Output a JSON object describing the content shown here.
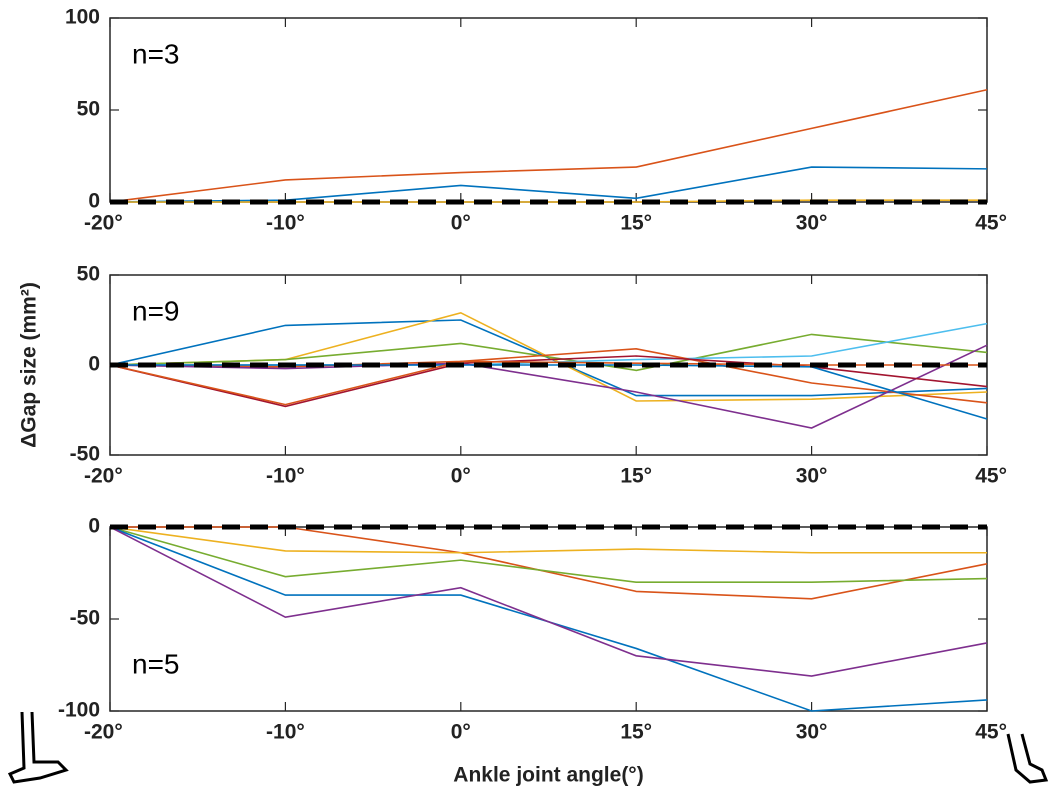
{
  "chart_data": [
    {
      "type": "line",
      "annotation": "n=3",
      "categories": [
        "-20°",
        "-10°",
        "0°",
        "15°",
        "30°",
        "45°"
      ],
      "ylim": [
        0,
        100
      ],
      "yticks": [
        0,
        50,
        100
      ],
      "reference_line": 0,
      "series": [
        {
          "color": "#D95319",
          "values": [
            0,
            12,
            16,
            19,
            40,
            61
          ]
        },
        {
          "color": "#0072BD",
          "values": [
            0,
            1,
            9,
            2,
            19,
            18
          ]
        },
        {
          "color": "#EDB120",
          "values": [
            0,
            0,
            0,
            0,
            1,
            1
          ]
        }
      ]
    },
    {
      "type": "line",
      "annotation": "n=9",
      "ylabel": "ΔGap size (mm²)",
      "categories": [
        "-20°",
        "-10°",
        "0°",
        "15°",
        "30°",
        "45°"
      ],
      "ylim": [
        -50,
        50
      ],
      "yticks": [
        -50,
        0,
        50
      ],
      "reference_line": 0,
      "series": [
        {
          "color": "#0072BD",
          "values": [
            0,
            22,
            25,
            -17,
            -17,
            -13
          ]
        },
        {
          "color": "#EDB120",
          "values": [
            0,
            3,
            29,
            -20,
            -19,
            -15
          ]
        },
        {
          "color": "#77AC30",
          "values": [
            0,
            3,
            12,
            -3,
            17,
            7
          ]
        },
        {
          "color": "#4DBEEE",
          "values": [
            0,
            0,
            0,
            3,
            5,
            23
          ]
        },
        {
          "color": "#D95319",
          "values": [
            0,
            -1,
            2,
            9,
            -10,
            -21
          ]
        },
        {
          "color": "#7E2F8E",
          "values": [
            0,
            -2,
            1,
            -15,
            -35,
            11
          ]
        },
        {
          "color": "#A2142F",
          "values": [
            0,
            -23,
            1,
            5,
            -1,
            -12
          ]
        },
        {
          "color": "#0072BD",
          "values": [
            0,
            0,
            0,
            0,
            -1,
            -30
          ]
        },
        {
          "color": "#D95319",
          "values": [
            0,
            -22,
            2,
            1,
            0,
            0
          ]
        }
      ]
    },
    {
      "type": "line",
      "annotation": "n=5",
      "xlabel": "Ankle joint angle(°)",
      "categories": [
        "-20°",
        "-10°",
        "0°",
        "15°",
        "30°",
        "45°"
      ],
      "ylim": [
        -100,
        0
      ],
      "yticks": [
        -100,
        -50,
        0
      ],
      "reference_line": 0,
      "series": [
        {
          "color": "#D95319",
          "values": [
            0,
            0,
            -14,
            -35,
            -39,
            -20
          ]
        },
        {
          "color": "#EDB120",
          "values": [
            0,
            -13,
            -14,
            -12,
            -14,
            -14
          ]
        },
        {
          "color": "#77AC30",
          "values": [
            0,
            -27,
            -18,
            -30,
            -30,
            -28
          ]
        },
        {
          "color": "#0072BD",
          "values": [
            0,
            -37,
            -37,
            -66,
            -100,
            -94
          ]
        },
        {
          "color": "#7E2F8E",
          "values": [
            0,
            -49,
            -33,
            -70,
            -81,
            -63
          ]
        }
      ]
    }
  ]
}
